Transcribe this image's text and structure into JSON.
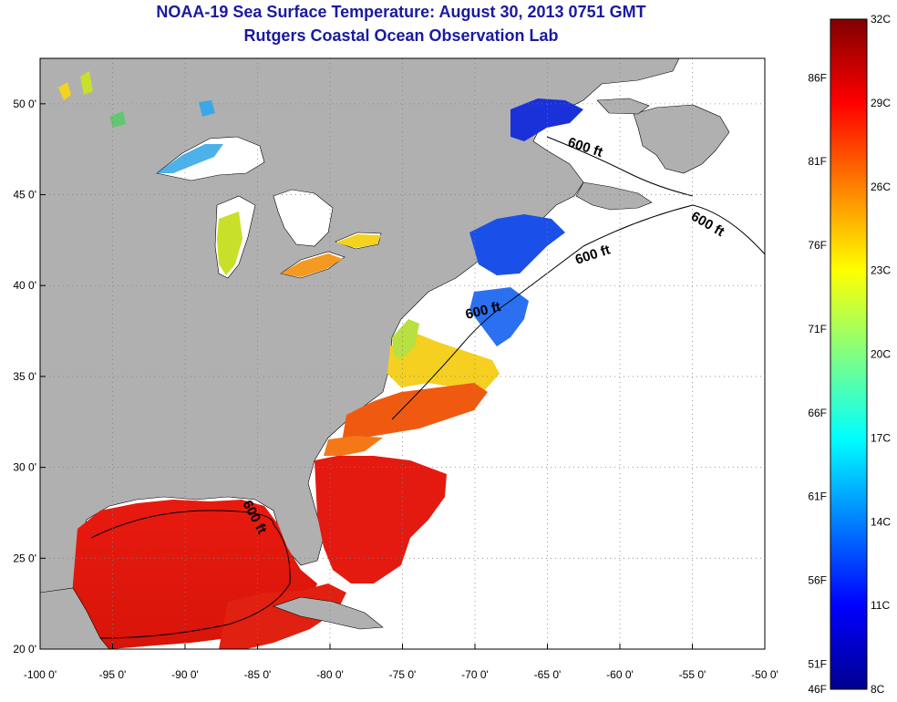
{
  "header": {
    "title": "NOAA-19 Sea Surface Temperature:  August 30, 2013 0751 GMT",
    "subtitle": "Rutgers Coastal Ocean Observation Lab"
  },
  "map": {
    "lon_range": [
      -100,
      -50
    ],
    "lat_range": [
      20,
      52.5
    ],
    "lon_ticks": [
      {
        "value": -100,
        "label": "-100 0'"
      },
      {
        "value": -95,
        "label": "-95 0'"
      },
      {
        "value": -90,
        "label": "-90 0'"
      },
      {
        "value": -85,
        "label": "-85 0'"
      },
      {
        "value": -80,
        "label": "-80 0'"
      },
      {
        "value": -75,
        "label": "-75 0'"
      },
      {
        "value": -70,
        "label": "-70 0'"
      },
      {
        "value": -65,
        "label": "-65 0'"
      },
      {
        "value": -60,
        "label": "-60 0'"
      },
      {
        "value": -55,
        "label": "-55 0'"
      },
      {
        "value": -50,
        "label": "-50 0'"
      }
    ],
    "lat_ticks": [
      {
        "value": 20,
        "label": "20 0'"
      },
      {
        "value": 25,
        "label": "25 0'"
      },
      {
        "value": 30,
        "label": "30 0'"
      },
      {
        "value": 35,
        "label": "35 0'"
      },
      {
        "value": 40,
        "label": "40 0'"
      },
      {
        "value": 45,
        "label": "45 0'"
      },
      {
        "value": 50,
        "label": "50 0'"
      }
    ],
    "contour_labels": [
      "600 ft",
      "600 ft",
      "600 ft",
      "600 ft",
      "600 ft"
    ],
    "colors": {
      "land": "#b0b0b0",
      "ocean_no_data": "#ffffff",
      "grid": "#808080"
    }
  },
  "colorbar": {
    "range_c": [
      8,
      32
    ],
    "celsius_labels": [
      "32C",
      "29C",
      "26C",
      "23C",
      "20C",
      "17C",
      "14C",
      "11C",
      "8C"
    ],
    "fahrenheit_labels": [
      "86F",
      "81F",
      "76F",
      "71F",
      "66F",
      "61F",
      "56F",
      "51F",
      "46F"
    ],
    "colors": [
      "#00008f",
      "#0000ff",
      "#0080ff",
      "#00ffff",
      "#80ff80",
      "#ffff00",
      "#ff8000",
      "#ff0000",
      "#800000"
    ]
  }
}
